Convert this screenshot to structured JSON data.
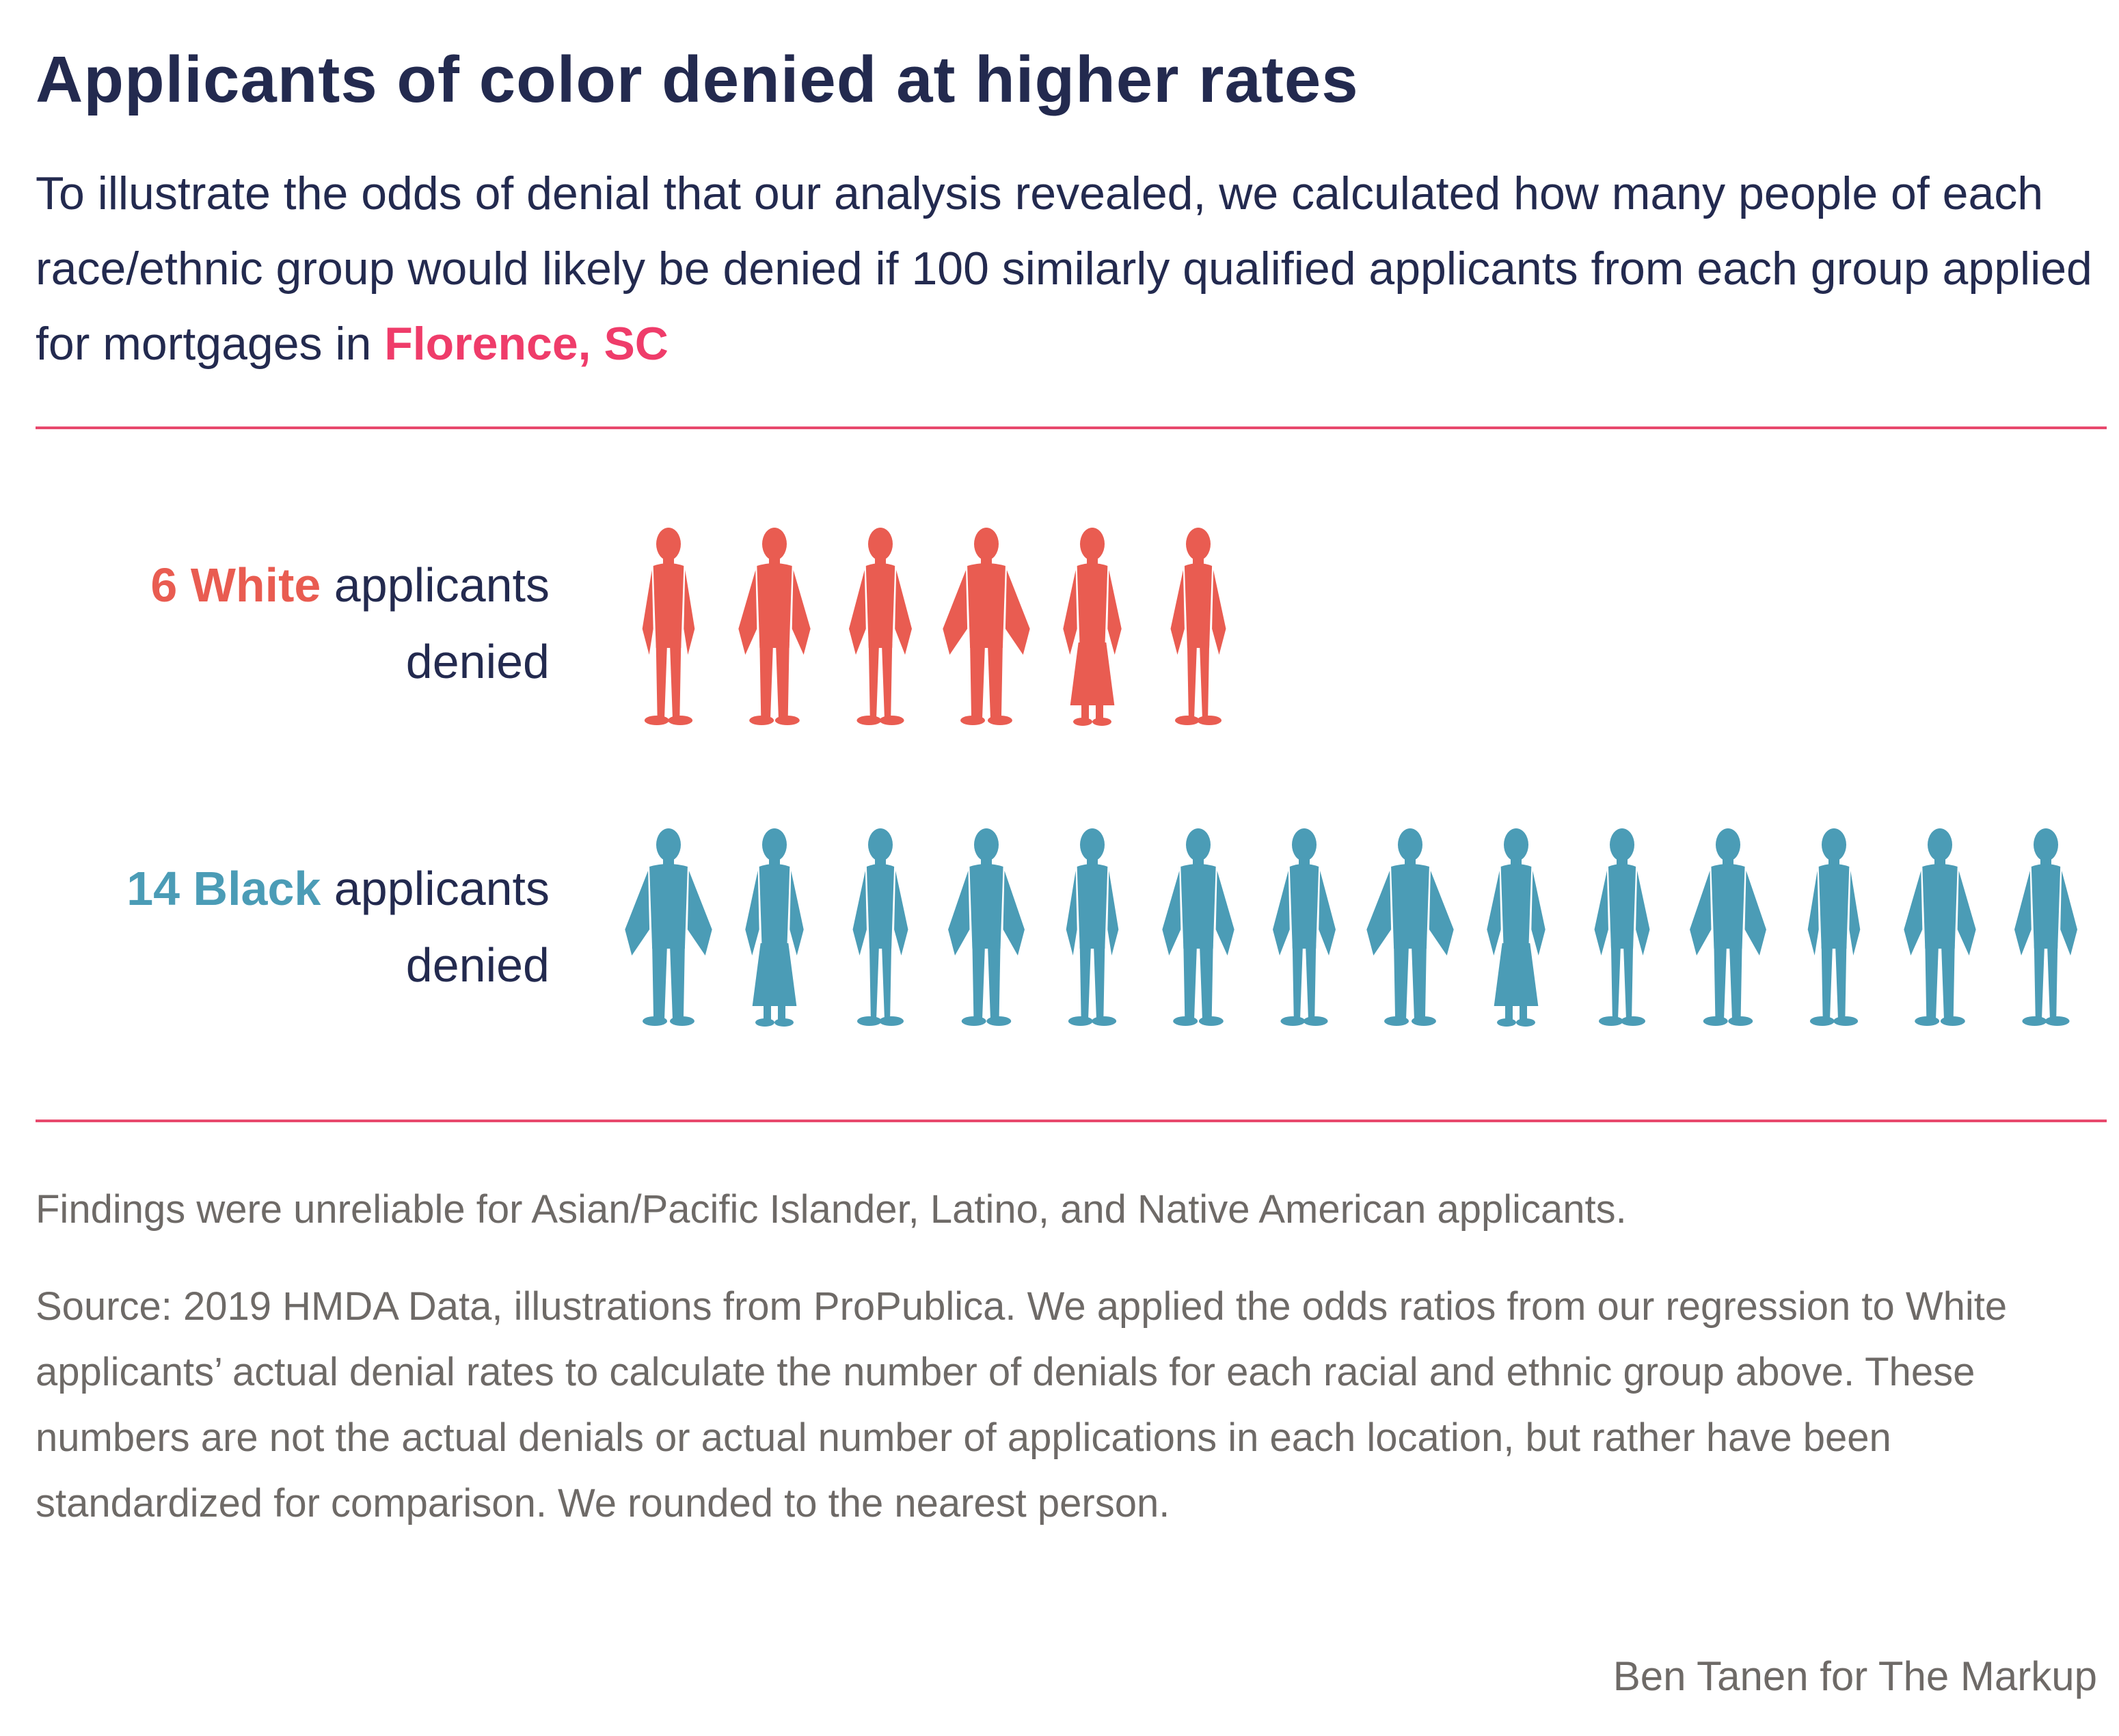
{
  "title": "Applicants of color denied at higher rates",
  "subtitle_text": "To illustrate the odds of denial that our analysis revealed, we calculated how many people of each race/ethnic group would likely be denied if 100 similarly qualified applicants from each group applied for mortgages in ",
  "subtitle_location": "Florence, SC",
  "chart_data": {
    "type": "bar",
    "categories": [
      "White",
      "Black"
    ],
    "values": [
      6,
      14
    ],
    "series": [
      {
        "name": "White",
        "value": 6,
        "color": "#e95c51"
      },
      {
        "name": "Black",
        "value": 14,
        "color": "#4b9cb6"
      }
    ],
    "rows": [
      {
        "count": "6",
        "group": "White",
        "suffix": " applicants",
        "suffix2": "denied",
        "color": "#e95c51"
      },
      {
        "count": "14",
        "group": "Black",
        "suffix": " applicants",
        "suffix2": "denied",
        "color": "#4b9cb6"
      }
    ],
    "icon": "person-silhouette-icon"
  },
  "note": "Findings were unreliable for Asian/Pacific Islander, Latino, and Native American applicants.",
  "source": "Source: 2019 HMDA Data, illustrations from ProPublica. We applied the odds ratios from our regression to White applicants’ actual denial rates to calculate the number of denials for each racial and ethnic group above. These numbers are not the actual denials or actual number of applications in each location, but rather have been standardized for comparison. We rounded to the nearest person.",
  "credit": "Ben Tanen for The Markup",
  "colors": {
    "title": "#232a4f",
    "accent": "#ef3c6a",
    "rule": "#e8496d",
    "muted": "#6e6a67"
  }
}
